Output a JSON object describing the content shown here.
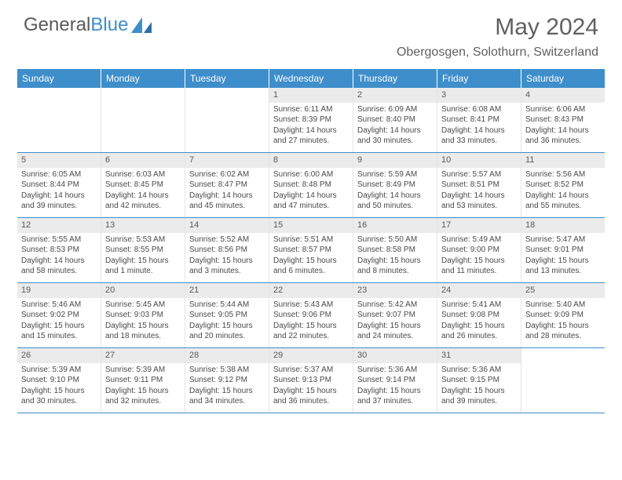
{
  "brand": {
    "part1": "General",
    "part2": "Blue"
  },
  "title": "May 2024",
  "location": "Obergosgen, Solothurn, Switzerland",
  "colors": {
    "header_bg": "#3e8ecb",
    "header_text": "#ffffff",
    "daynum_bg": "#ebebeb",
    "border": "#3e8ecb",
    "text": "#4a4a4a",
    "logo_blue": "#3e8ecb",
    "logo_gray": "#5a5a5a"
  },
  "day_names": [
    "Sunday",
    "Monday",
    "Tuesday",
    "Wednesday",
    "Thursday",
    "Friday",
    "Saturday"
  ],
  "layout": {
    "first_day_column": 3,
    "days_in_month": 31
  },
  "days": {
    "1": {
      "sunrise": "6:11 AM",
      "sunset": "8:39 PM",
      "daylight": "14 hours and 27 minutes."
    },
    "2": {
      "sunrise": "6:09 AM",
      "sunset": "8:40 PM",
      "daylight": "14 hours and 30 minutes."
    },
    "3": {
      "sunrise": "6:08 AM",
      "sunset": "8:41 PM",
      "daylight": "14 hours and 33 minutes."
    },
    "4": {
      "sunrise": "6:06 AM",
      "sunset": "8:43 PM",
      "daylight": "14 hours and 36 minutes."
    },
    "5": {
      "sunrise": "6:05 AM",
      "sunset": "8:44 PM",
      "daylight": "14 hours and 39 minutes."
    },
    "6": {
      "sunrise": "6:03 AM",
      "sunset": "8:45 PM",
      "daylight": "14 hours and 42 minutes."
    },
    "7": {
      "sunrise": "6:02 AM",
      "sunset": "8:47 PM",
      "daylight": "14 hours and 45 minutes."
    },
    "8": {
      "sunrise": "6:00 AM",
      "sunset": "8:48 PM",
      "daylight": "14 hours and 47 minutes."
    },
    "9": {
      "sunrise": "5:59 AM",
      "sunset": "8:49 PM",
      "daylight": "14 hours and 50 minutes."
    },
    "10": {
      "sunrise": "5:57 AM",
      "sunset": "8:51 PM",
      "daylight": "14 hours and 53 minutes."
    },
    "11": {
      "sunrise": "5:56 AM",
      "sunset": "8:52 PM",
      "daylight": "14 hours and 55 minutes."
    },
    "12": {
      "sunrise": "5:55 AM",
      "sunset": "8:53 PM",
      "daylight": "14 hours and 58 minutes."
    },
    "13": {
      "sunrise": "5:53 AM",
      "sunset": "8:55 PM",
      "daylight": "15 hours and 1 minute."
    },
    "14": {
      "sunrise": "5:52 AM",
      "sunset": "8:56 PM",
      "daylight": "15 hours and 3 minutes."
    },
    "15": {
      "sunrise": "5:51 AM",
      "sunset": "8:57 PM",
      "daylight": "15 hours and 6 minutes."
    },
    "16": {
      "sunrise": "5:50 AM",
      "sunset": "8:58 PM",
      "daylight": "15 hours and 8 minutes."
    },
    "17": {
      "sunrise": "5:49 AM",
      "sunset": "9:00 PM",
      "daylight": "15 hours and 11 minutes."
    },
    "18": {
      "sunrise": "5:47 AM",
      "sunset": "9:01 PM",
      "daylight": "15 hours and 13 minutes."
    },
    "19": {
      "sunrise": "5:46 AM",
      "sunset": "9:02 PM",
      "daylight": "15 hours and 15 minutes."
    },
    "20": {
      "sunrise": "5:45 AM",
      "sunset": "9:03 PM",
      "daylight": "15 hours and 18 minutes."
    },
    "21": {
      "sunrise": "5:44 AM",
      "sunset": "9:05 PM",
      "daylight": "15 hours and 20 minutes."
    },
    "22": {
      "sunrise": "5:43 AM",
      "sunset": "9:06 PM",
      "daylight": "15 hours and 22 minutes."
    },
    "23": {
      "sunrise": "5:42 AM",
      "sunset": "9:07 PM",
      "daylight": "15 hours and 24 minutes."
    },
    "24": {
      "sunrise": "5:41 AM",
      "sunset": "9:08 PM",
      "daylight": "15 hours and 26 minutes."
    },
    "25": {
      "sunrise": "5:40 AM",
      "sunset": "9:09 PM",
      "daylight": "15 hours and 28 minutes."
    },
    "26": {
      "sunrise": "5:39 AM",
      "sunset": "9:10 PM",
      "daylight": "15 hours and 30 minutes."
    },
    "27": {
      "sunrise": "5:39 AM",
      "sunset": "9:11 PM",
      "daylight": "15 hours and 32 minutes."
    },
    "28": {
      "sunrise": "5:38 AM",
      "sunset": "9:12 PM",
      "daylight": "15 hours and 34 minutes."
    },
    "29": {
      "sunrise": "5:37 AM",
      "sunset": "9:13 PM",
      "daylight": "15 hours and 36 minutes."
    },
    "30": {
      "sunrise": "5:36 AM",
      "sunset": "9:14 PM",
      "daylight": "15 hours and 37 minutes."
    },
    "31": {
      "sunrise": "5:36 AM",
      "sunset": "9:15 PM",
      "daylight": "15 hours and 39 minutes."
    }
  },
  "labels": {
    "sunrise": "Sunrise:",
    "sunset": "Sunset:",
    "daylight": "Daylight:"
  }
}
